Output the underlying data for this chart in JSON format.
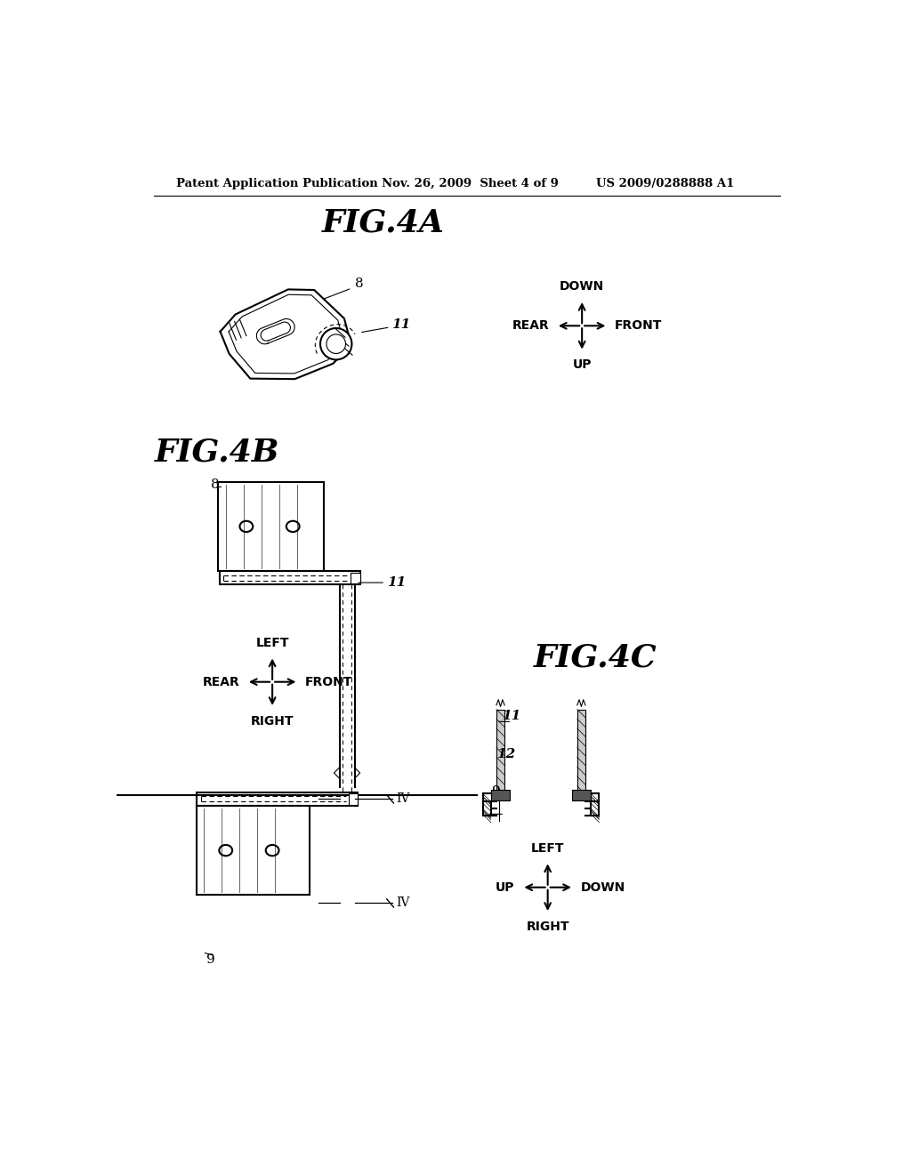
{
  "bg_color": "#ffffff",
  "header_left": "Patent Application Publication",
  "header_mid": "Nov. 26, 2009  Sheet 4 of 9",
  "header_right": "US 2009/0288888 A1",
  "fig4a_title": "FIG.4A",
  "fig4b_title": "FIG.4B",
  "fig4c_title": "FIG.4C"
}
